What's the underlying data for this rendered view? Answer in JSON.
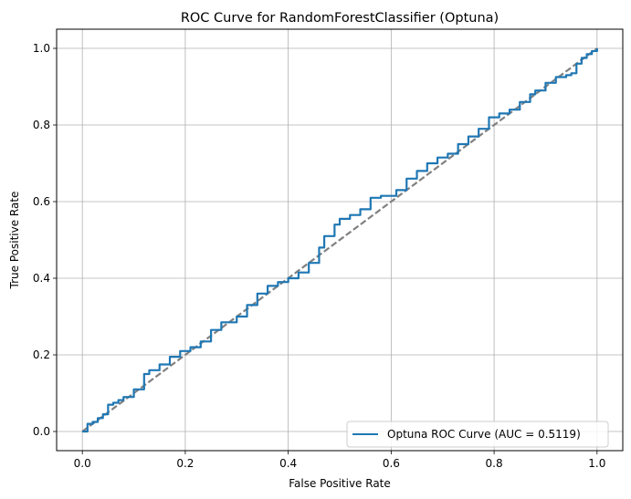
{
  "chart_data": {
    "type": "line",
    "title": "ROC Curve for RandomForestClassifier (Optuna)",
    "xlabel": "False Positive Rate",
    "ylabel": "True Positive Rate",
    "xlim": [
      -0.05,
      1.05
    ],
    "ylim": [
      -0.05,
      1.05
    ],
    "xticks": [
      "0.0",
      "0.2",
      "0.4",
      "0.6",
      "0.8",
      "1.0"
    ],
    "yticks": [
      "0.0",
      "0.2",
      "0.4",
      "0.6",
      "0.8",
      "1.0"
    ],
    "grid": true,
    "legend_position": "lower-right",
    "series": [
      {
        "name": "Optuna ROC Curve (AUC = 0.5119)",
        "color": "#1f77b4",
        "style": "solid",
        "x": [
          0.0,
          0.01,
          0.02,
          0.03,
          0.04,
          0.05,
          0.06,
          0.07,
          0.08,
          0.1,
          0.12,
          0.13,
          0.15,
          0.17,
          0.19,
          0.21,
          0.23,
          0.25,
          0.27,
          0.3,
          0.32,
          0.34,
          0.36,
          0.38,
          0.4,
          0.42,
          0.44,
          0.46,
          0.47,
          0.49,
          0.5,
          0.52,
          0.54,
          0.56,
          0.58,
          0.6,
          0.61,
          0.63,
          0.65,
          0.67,
          0.69,
          0.71,
          0.73,
          0.75,
          0.77,
          0.79,
          0.81,
          0.83,
          0.85,
          0.87,
          0.88,
          0.9,
          0.92,
          0.94,
          0.95,
          0.96,
          0.97,
          0.98,
          0.99,
          1.0
        ],
        "y": [
          0.0,
          0.02,
          0.025,
          0.035,
          0.045,
          0.07,
          0.075,
          0.082,
          0.09,
          0.11,
          0.15,
          0.16,
          0.175,
          0.195,
          0.21,
          0.22,
          0.235,
          0.265,
          0.285,
          0.3,
          0.33,
          0.36,
          0.38,
          0.39,
          0.4,
          0.415,
          0.44,
          0.48,
          0.51,
          0.54,
          0.555,
          0.565,
          0.58,
          0.61,
          0.615,
          0.615,
          0.63,
          0.66,
          0.68,
          0.7,
          0.715,
          0.725,
          0.75,
          0.77,
          0.79,
          0.82,
          0.83,
          0.84,
          0.86,
          0.88,
          0.89,
          0.91,
          0.925,
          0.93,
          0.935,
          0.96,
          0.975,
          0.985,
          0.993,
          1.0
        ]
      },
      {
        "name": "",
        "color": "#808080",
        "style": "dashed",
        "x": [
          0.0,
          1.0
        ],
        "y": [
          0.0,
          1.0
        ]
      }
    ]
  }
}
